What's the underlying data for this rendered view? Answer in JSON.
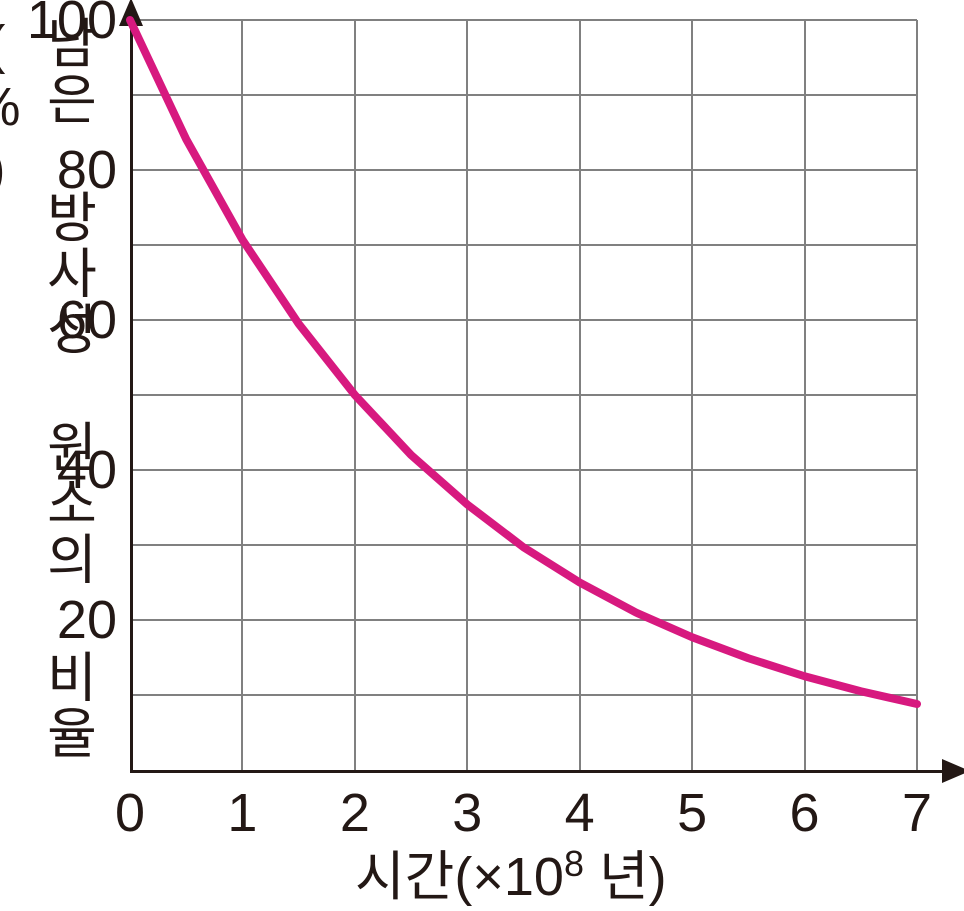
{
  "chart": {
    "type": "line",
    "y_axis_label": "남은 방사성 원소의 비율(%)",
    "x_axis_label_prefix": "시간(×10",
    "x_axis_label_exp": "8",
    "x_axis_label_suffix": " 년)",
    "background_color": "#ffffff",
    "grid_color": "#808080",
    "axis_color": "#231815",
    "text_color": "#231815",
    "curve_color": "#d7197f",
    "curve_width": 8,
    "axis_font_size": 54,
    "xlim": [
      0,
      7
    ],
    "ylim": [
      0,
      100
    ],
    "x_ticks": [
      0,
      1,
      2,
      3,
      4,
      5,
      6,
      7
    ],
    "y_ticks": [
      20,
      40,
      60,
      80,
      100
    ],
    "y_grid_lines": [
      10,
      20,
      30,
      40,
      50,
      60,
      70,
      80,
      90,
      100
    ],
    "x_grid_lines": [
      1,
      2,
      3,
      4,
      5,
      6,
      7
    ],
    "data_points": [
      {
        "x": 0.0,
        "y": 100.0
      },
      {
        "x": 0.5,
        "y": 84.1
      },
      {
        "x": 1.0,
        "y": 70.7
      },
      {
        "x": 1.5,
        "y": 59.5
      },
      {
        "x": 2.0,
        "y": 50.0
      },
      {
        "x": 2.5,
        "y": 42.0
      },
      {
        "x": 3.0,
        "y": 35.4
      },
      {
        "x": 3.5,
        "y": 29.7
      },
      {
        "x": 4.0,
        "y": 25.0
      },
      {
        "x": 4.5,
        "y": 21.0
      },
      {
        "x": 5.0,
        "y": 17.7
      },
      {
        "x": 5.5,
        "y": 14.9
      },
      {
        "x": 6.0,
        "y": 12.5
      },
      {
        "x": 6.5,
        "y": 10.5
      },
      {
        "x": 7.0,
        "y": 8.8
      }
    ]
  }
}
